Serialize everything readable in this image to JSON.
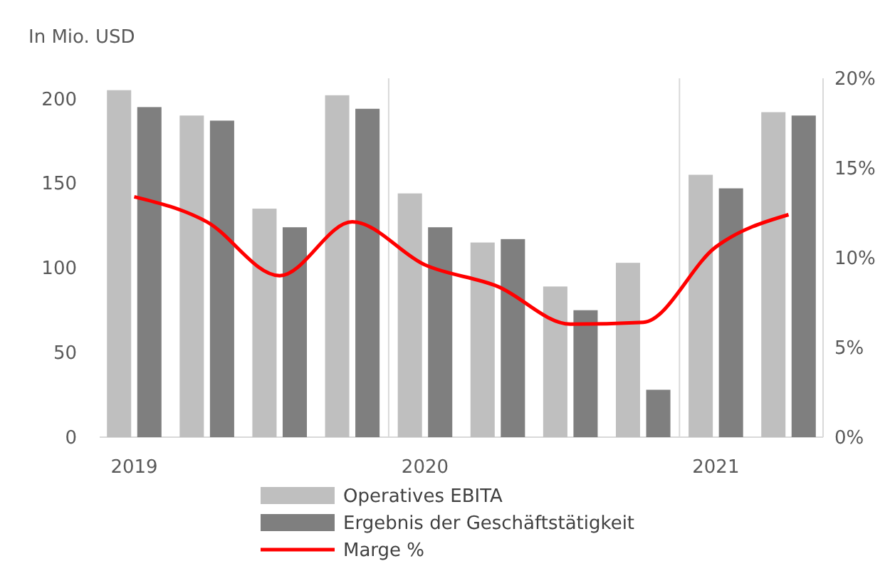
{
  "chart_data": {
    "type": "bar",
    "ylabel": "In Mio. USD",
    "categories": [
      "2019",
      null,
      null,
      null,
      "2020",
      null,
      null,
      null,
      "2021",
      null
    ],
    "ylim": [
      0,
      212
    ],
    "yticks": [
      0,
      50,
      100,
      150,
      200
    ],
    "y2lim": [
      0,
      20
    ],
    "y2ticks": [
      {
        "value": 0,
        "label": "0%"
      },
      {
        "value": 5,
        "label": "5%"
      },
      {
        "value": 10,
        "label": "10%"
      },
      {
        "value": 15,
        "label": "15%"
      },
      {
        "value": 20,
        "label": "20%"
      }
    ],
    "legend": "bottom",
    "marker": "none",
    "line_style": "solid",
    "series": [
      {
        "name": "Operatives EBITA",
        "color": "#bfbfbf",
        "values": [
          205,
          190,
          135,
          202,
          144,
          115,
          89,
          103,
          155,
          192
        ]
      },
      {
        "name": "Ergebnis der Geschäftstätigkeit",
        "color": "#7f7f7f",
        "values": [
          195,
          187,
          124,
          194,
          124,
          117,
          75,
          28,
          147,
          190
        ]
      },
      {
        "name": "Marge %",
        "type": "line",
        "axis": "y2",
        "color": "#ff0000",
        "values": [
          13.4,
          12.0,
          9.0,
          12.0,
          9.6,
          8.4,
          6.3,
          6.4,
          10.6,
          12.4
        ]
      }
    ]
  }
}
